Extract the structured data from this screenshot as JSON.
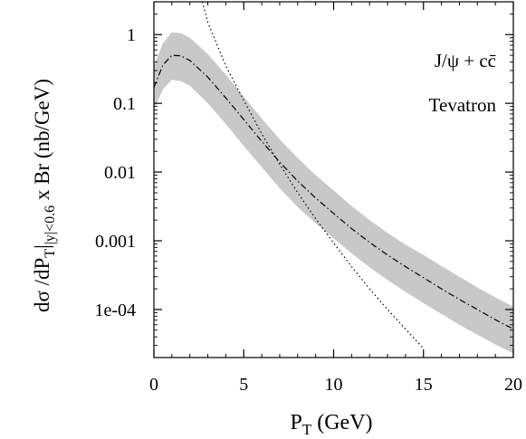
{
  "chart_data": {
    "type": "line",
    "title": "",
    "xlabel": "P",
    "xlabel_sub": "T",
    "xlabel_unit": " (GeV)",
    "ylabel": {
      "part1": "dσ /dP",
      "sub1": "T",
      "part2": "|",
      "sub2": "|y|<0.6",
      "part3": " x Br  (nb/GeV)"
    },
    "xlim": [
      0,
      20
    ],
    "ylim": [
      2e-05,
      3
    ],
    "yscale": "log",
    "grid": false,
    "xticks": [
      0,
      5,
      10,
      15,
      20
    ],
    "xtick_labels": [
      "0",
      "5",
      "10",
      "15",
      "20"
    ],
    "yticks": [
      1,
      0.1,
      0.01,
      0.001,
      0.0001
    ],
    "ytick_labels": [
      "1",
      "0.1",
      "0.01",
      "0.001",
      "1e-04"
    ],
    "annotations": {
      "process": "J/ψ  +  cc̄",
      "collider": "Tevatron"
    },
    "series": [
      {
        "style": "dash-dot",
        "color": "#000000",
        "x": [
          0,
          0.5,
          1,
          1.5,
          2,
          3,
          4,
          5,
          6,
          7,
          8,
          9,
          10,
          11,
          12,
          13,
          14,
          15,
          16,
          17,
          18,
          19,
          20
        ],
        "y": [
          0.17,
          0.36,
          0.5,
          0.49,
          0.42,
          0.24,
          0.12,
          0.058,
          0.028,
          0.014,
          0.0074,
          0.0042,
          0.0025,
          0.0015,
          0.00095,
          0.00062,
          0.00042,
          0.00029,
          0.0002,
          0.00014,
          0.0001,
          7.1e-05,
          5.2e-05
        ]
      },
      {
        "style": "dotted",
        "color": "#000000",
        "x": [
          2.7,
          3,
          4,
          5,
          6,
          7,
          8,
          9,
          10,
          11,
          12,
          13,
          14,
          15
        ],
        "y": [
          3.0,
          1.5,
          0.35,
          0.11,
          0.036,
          0.013,
          0.005,
          0.0021,
          0.00093,
          0.00042,
          0.0002,
          0.0001,
          5.2e-05,
          2.7e-05
        ]
      }
    ],
    "band": {
      "color": "#c8c8c8",
      "x": [
        0,
        0.5,
        1,
        1.5,
        2,
        3,
        4,
        5,
        6,
        7,
        8,
        9,
        10,
        11,
        12,
        13,
        14,
        15,
        16,
        17,
        18,
        19,
        20
      ],
      "upper": [
        0.35,
        0.75,
        1.08,
        1.05,
        0.9,
        0.52,
        0.26,
        0.125,
        0.06,
        0.03,
        0.016,
        0.009,
        0.0054,
        0.0032,
        0.002,
        0.0013,
        0.00088,
        0.00062,
        0.00043,
        0.0003,
        0.00021,
        0.00015,
        0.00011
      ],
      "lower": [
        0.08,
        0.16,
        0.22,
        0.21,
        0.18,
        0.1,
        0.05,
        0.024,
        0.0118,
        0.0058,
        0.0031,
        0.0018,
        0.00108,
        0.00066,
        0.00041,
        0.00027,
        0.00018,
        0.000124,
        8.6e-05,
        6e-05,
        4.3e-05,
        3.1e-05,
        2.3e-05
      ]
    }
  }
}
